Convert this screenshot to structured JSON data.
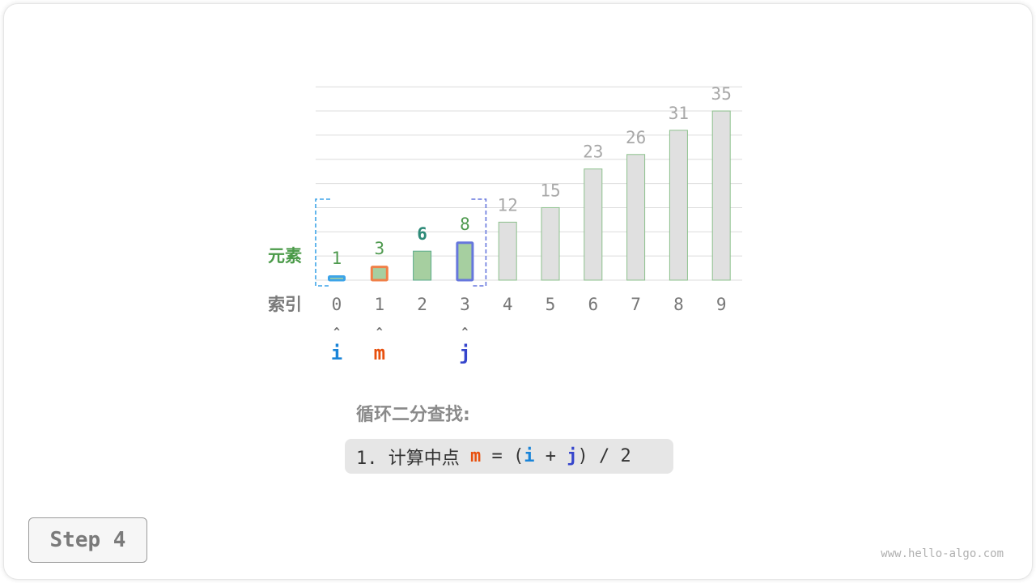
{
  "row_labels": {
    "elements": "元素",
    "index": "索引"
  },
  "array": [
    1,
    3,
    6,
    8,
    12,
    15,
    23,
    26,
    31,
    35
  ],
  "indices": [
    "0",
    "1",
    "2",
    "3",
    "4",
    "5",
    "6",
    "7",
    "8",
    "9"
  ],
  "pointers": [
    {
      "name": "i",
      "index": 0,
      "color": "#1a84d8",
      "bar_border": "#3da4e8"
    },
    {
      "name": "m",
      "index": 1,
      "color": "#e8500e",
      "bar_border": "#f08048"
    },
    {
      "name": "j",
      "index": 3,
      "color": "#3545cc",
      "bar_border": "#6677dd"
    }
  ],
  "pointer_arrow": "^",
  "highlight_value_index": 2,
  "search_range": [
    0,
    3
  ],
  "colors": {
    "active_fill": "#a6cfa0",
    "inactive_fill": "#e0e0e0",
    "active_label": "#4f9a4f",
    "inactive_label": "#a8a8a8",
    "highlight_label": "#2e8a78",
    "row_label_elements": "#4a9a48",
    "row_label_index": "#7a7a7a"
  },
  "scale_max": 40,
  "caption": {
    "title": "循环二分查找:",
    "prefix": "1. 计算中点 ",
    "m": "m",
    "eq": " = (",
    "i": "i",
    "plus": " + ",
    "j": "j",
    "suffix": ") / 2"
  },
  "step_label": "Step 4",
  "watermark": "www.hello-algo.com"
}
